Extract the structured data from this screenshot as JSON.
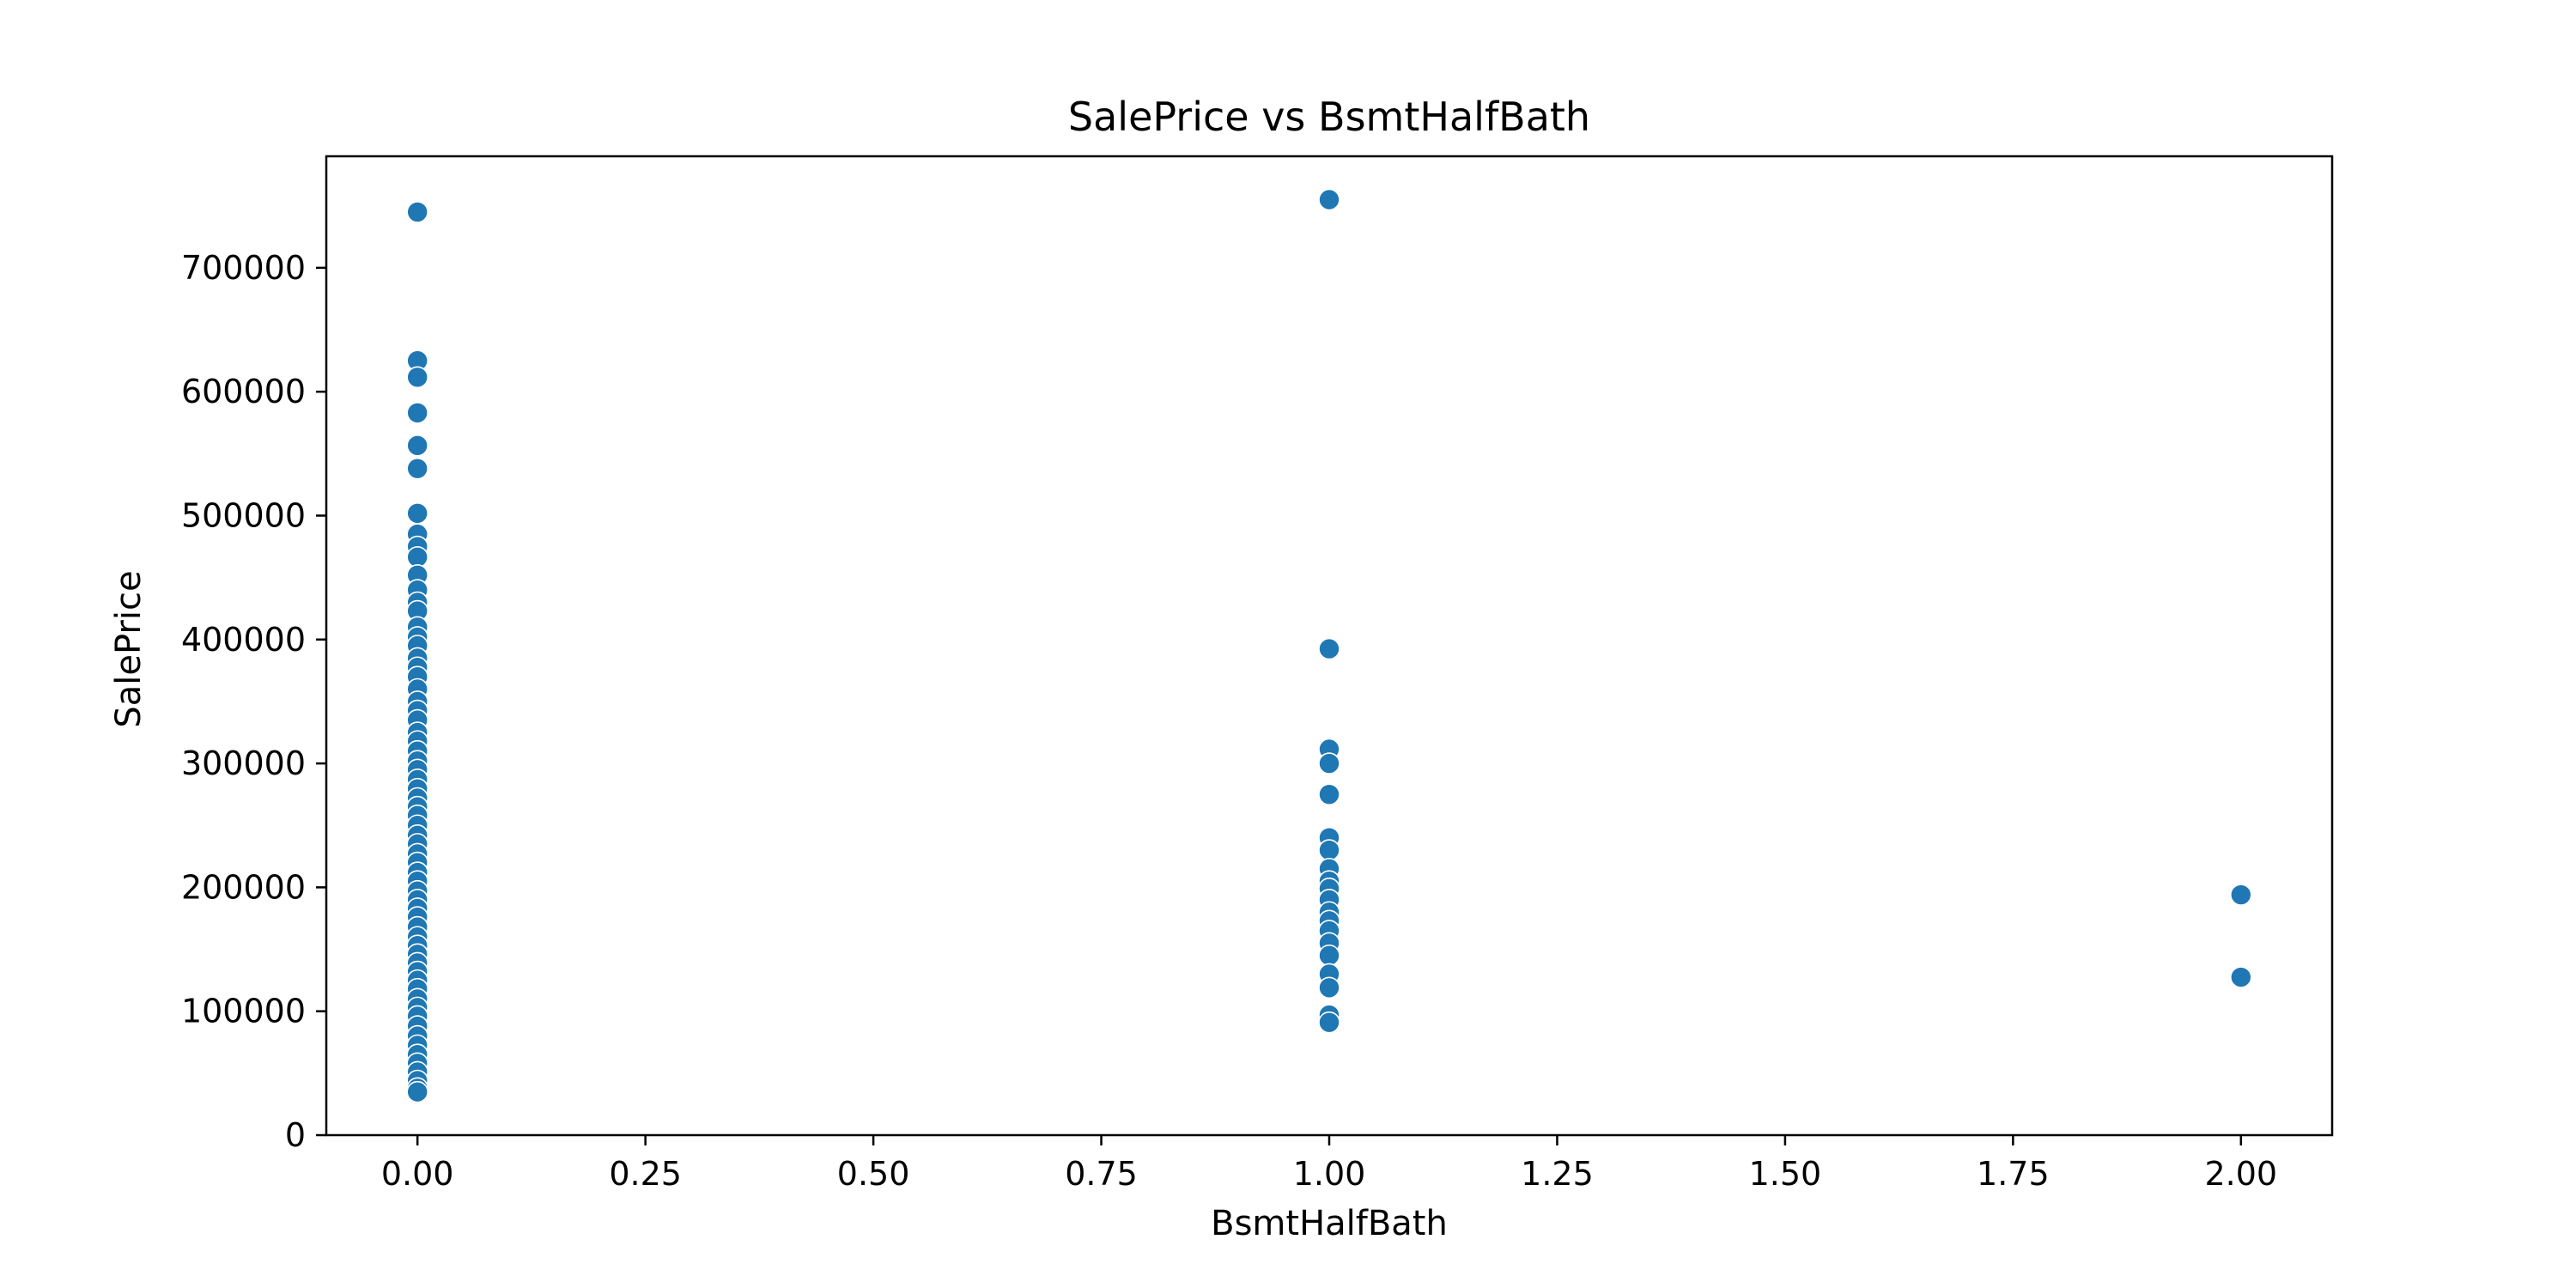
{
  "chart_data": {
    "type": "scatter",
    "title": "SalePrice vs BsmtHalfBath",
    "xlabel": "BsmtHalfBath",
    "ylabel": "SalePrice",
    "xlim": [
      -0.1,
      2.1
    ],
    "ylim": [
      0,
      790000
    ],
    "xticks": [
      0.0,
      0.25,
      0.5,
      0.75,
      1.0,
      1.25,
      1.5,
      1.75,
      2.0
    ],
    "xtick_labels": [
      "0.00",
      "0.25",
      "0.50",
      "0.75",
      "1.00",
      "1.25",
      "1.50",
      "1.75",
      "2.00"
    ],
    "yticks": [
      0,
      100000,
      200000,
      300000,
      400000,
      500000,
      600000,
      700000
    ],
    "ytick_labels": [
      "0",
      "100000",
      "200000",
      "300000",
      "400000",
      "500000",
      "600000",
      "700000"
    ],
    "grid": false,
    "marker_color": "#1f77b4",
    "marker_edge_color": "#ffffff",
    "points": [
      {
        "x": 0,
        "y": 745000
      },
      {
        "x": 0,
        "y": 625000
      },
      {
        "x": 0,
        "y": 611657
      },
      {
        "x": 0,
        "y": 582933
      },
      {
        "x": 0,
        "y": 556581
      },
      {
        "x": 0,
        "y": 538000
      },
      {
        "x": 0,
        "y": 501837
      },
      {
        "x": 0,
        "y": 485000
      },
      {
        "x": 0,
        "y": 475000
      },
      {
        "x": 0,
        "y": 466500
      },
      {
        "x": 0,
        "y": 451950
      },
      {
        "x": 0,
        "y": 440000
      },
      {
        "x": 0,
        "y": 430000
      },
      {
        "x": 0,
        "y": 423000
      },
      {
        "x": 0,
        "y": 410000
      },
      {
        "x": 0,
        "y": 402000
      },
      {
        "x": 0,
        "y": 395000
      },
      {
        "x": 0,
        "y": 385000
      },
      {
        "x": 0,
        "y": 377500
      },
      {
        "x": 0,
        "y": 369900
      },
      {
        "x": 0,
        "y": 360000
      },
      {
        "x": 0,
        "y": 350000
      },
      {
        "x": 0,
        "y": 342643
      },
      {
        "x": 0,
        "y": 335000
      },
      {
        "x": 0,
        "y": 325000
      },
      {
        "x": 0,
        "y": 318000
      },
      {
        "x": 0,
        "y": 310000
      },
      {
        "x": 0,
        "y": 302000
      },
      {
        "x": 0,
        "y": 295000
      },
      {
        "x": 0,
        "y": 287000
      },
      {
        "x": 0,
        "y": 279500
      },
      {
        "x": 0,
        "y": 272000
      },
      {
        "x": 0,
        "y": 265000
      },
      {
        "x": 0,
        "y": 258000
      },
      {
        "x": 0,
        "y": 250000
      },
      {
        "x": 0,
        "y": 242000
      },
      {
        "x": 0,
        "y": 235000
      },
      {
        "x": 0,
        "y": 227000
      },
      {
        "x": 0,
        "y": 220000
      },
      {
        "x": 0,
        "y": 212000
      },
      {
        "x": 0,
        "y": 205000
      },
      {
        "x": 0,
        "y": 197000
      },
      {
        "x": 0,
        "y": 190000
      },
      {
        "x": 0,
        "y": 183000
      },
      {
        "x": 0,
        "y": 176000
      },
      {
        "x": 0,
        "y": 168000
      },
      {
        "x": 0,
        "y": 160000
      },
      {
        "x": 0,
        "y": 153000
      },
      {
        "x": 0,
        "y": 146000
      },
      {
        "x": 0,
        "y": 139000
      },
      {
        "x": 0,
        "y": 132000
      },
      {
        "x": 0,
        "y": 125000
      },
      {
        "x": 0,
        "y": 118000
      },
      {
        "x": 0,
        "y": 110000
      },
      {
        "x": 0,
        "y": 103000
      },
      {
        "x": 0,
        "y": 96000
      },
      {
        "x": 0,
        "y": 88000
      },
      {
        "x": 0,
        "y": 80000
      },
      {
        "x": 0,
        "y": 72500
      },
      {
        "x": 0,
        "y": 65000
      },
      {
        "x": 0,
        "y": 58000
      },
      {
        "x": 0,
        "y": 51000
      },
      {
        "x": 0,
        "y": 44000
      },
      {
        "x": 0,
        "y": 37900
      },
      {
        "x": 0,
        "y": 34900
      },
      {
        "x": 1,
        "y": 755000
      },
      {
        "x": 1,
        "y": 392500
      },
      {
        "x": 1,
        "y": 311500
      },
      {
        "x": 1,
        "y": 300000
      },
      {
        "x": 1,
        "y": 275000
      },
      {
        "x": 1,
        "y": 240000
      },
      {
        "x": 1,
        "y": 230000
      },
      {
        "x": 1,
        "y": 215000
      },
      {
        "x": 1,
        "y": 205000
      },
      {
        "x": 1,
        "y": 199000
      },
      {
        "x": 1,
        "y": 190000
      },
      {
        "x": 1,
        "y": 180000
      },
      {
        "x": 1,
        "y": 173000
      },
      {
        "x": 1,
        "y": 165000
      },
      {
        "x": 1,
        "y": 155000
      },
      {
        "x": 1,
        "y": 145000
      },
      {
        "x": 1,
        "y": 130000
      },
      {
        "x": 1,
        "y": 119000
      },
      {
        "x": 1,
        "y": 97000
      },
      {
        "x": 1,
        "y": 91000
      },
      {
        "x": 2,
        "y": 194000
      },
      {
        "x": 2,
        "y": 127500
      }
    ]
  }
}
